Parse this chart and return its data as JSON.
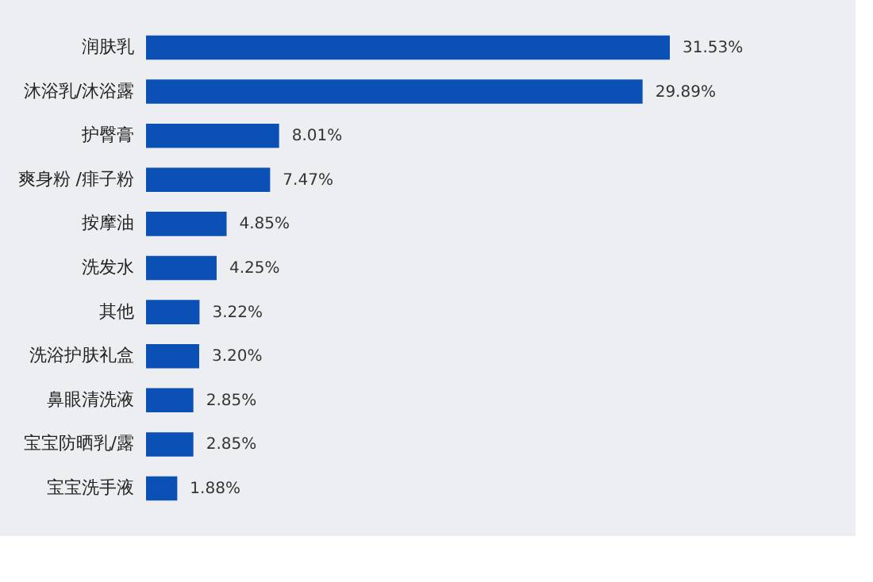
{
  "chart_data": {
    "type": "bar",
    "orientation": "horizontal",
    "categories": [
      "润肤乳",
      "沐浴乳/沐浴露",
      "护臀膏",
      "爽身粉 /痱子粉",
      "按摩油",
      "洗发水",
      "其他",
      "洗浴护肤礼盒",
      "鼻眼清洗液",
      "宝宝防晒乳/露",
      "宝宝洗手液"
    ],
    "values": [
      31.53,
      29.89,
      8.01,
      7.47,
      4.85,
      4.25,
      3.22,
      3.2,
      2.85,
      2.85,
      1.88
    ],
    "value_labels": [
      "31.53%",
      "29.89%",
      "8.01%",
      "7.47%",
      "4.85%",
      "4.25%",
      "3.22%",
      "3.20%",
      "2.85%",
      "2.85%",
      "1.88%"
    ],
    "color": "#0b50b4",
    "grid": false,
    "tick_labels": "y"
  }
}
